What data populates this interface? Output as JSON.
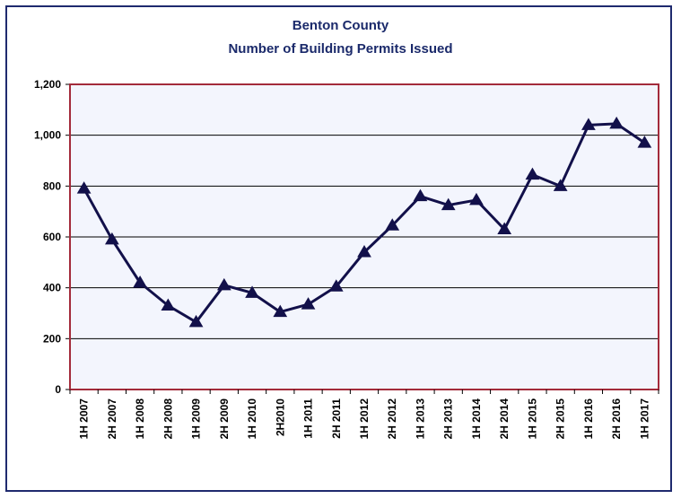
{
  "chart_data": {
    "type": "line",
    "title": "Benton County",
    "subtitle": "Number of Building Permits Issued",
    "xlabel": "",
    "ylabel": "",
    "ylim": [
      0,
      1200
    ],
    "yticks": [
      "0",
      "200",
      "400",
      "600",
      "800",
      "1,000",
      "1,200"
    ],
    "ytick_values": [
      0,
      200,
      400,
      600,
      800,
      1000,
      1200
    ],
    "grid": true,
    "categories": [
      "1H 2007",
      "2H 2007",
      "1H 2008",
      "2H 2008",
      "1H 2009",
      "2H 2009",
      "1H 2010",
      "2H2010",
      "1H 2011",
      "2H 2011",
      "1H 2012",
      "2H 2012",
      "1H 2013",
      "2H 2013",
      "1H 2014",
      "2H 2014",
      "1H 2015",
      "2H 2015",
      "1H 2016",
      "2H 2016",
      "1H 2017"
    ],
    "series": [
      {
        "values": [
          790,
          590,
          420,
          330,
          265,
          410,
          380,
          305,
          335,
          405,
          540,
          645,
          760,
          725,
          745,
          630,
          845,
          800,
          1040,
          1045,
          970
        ]
      }
    ],
    "colors": {
      "line": "#12104a",
      "plot_bg": "#f3f5fd",
      "plot_border": "#a32b3b",
      "frame": "#1f2a6e",
      "title": "#1b2a6b"
    }
  }
}
